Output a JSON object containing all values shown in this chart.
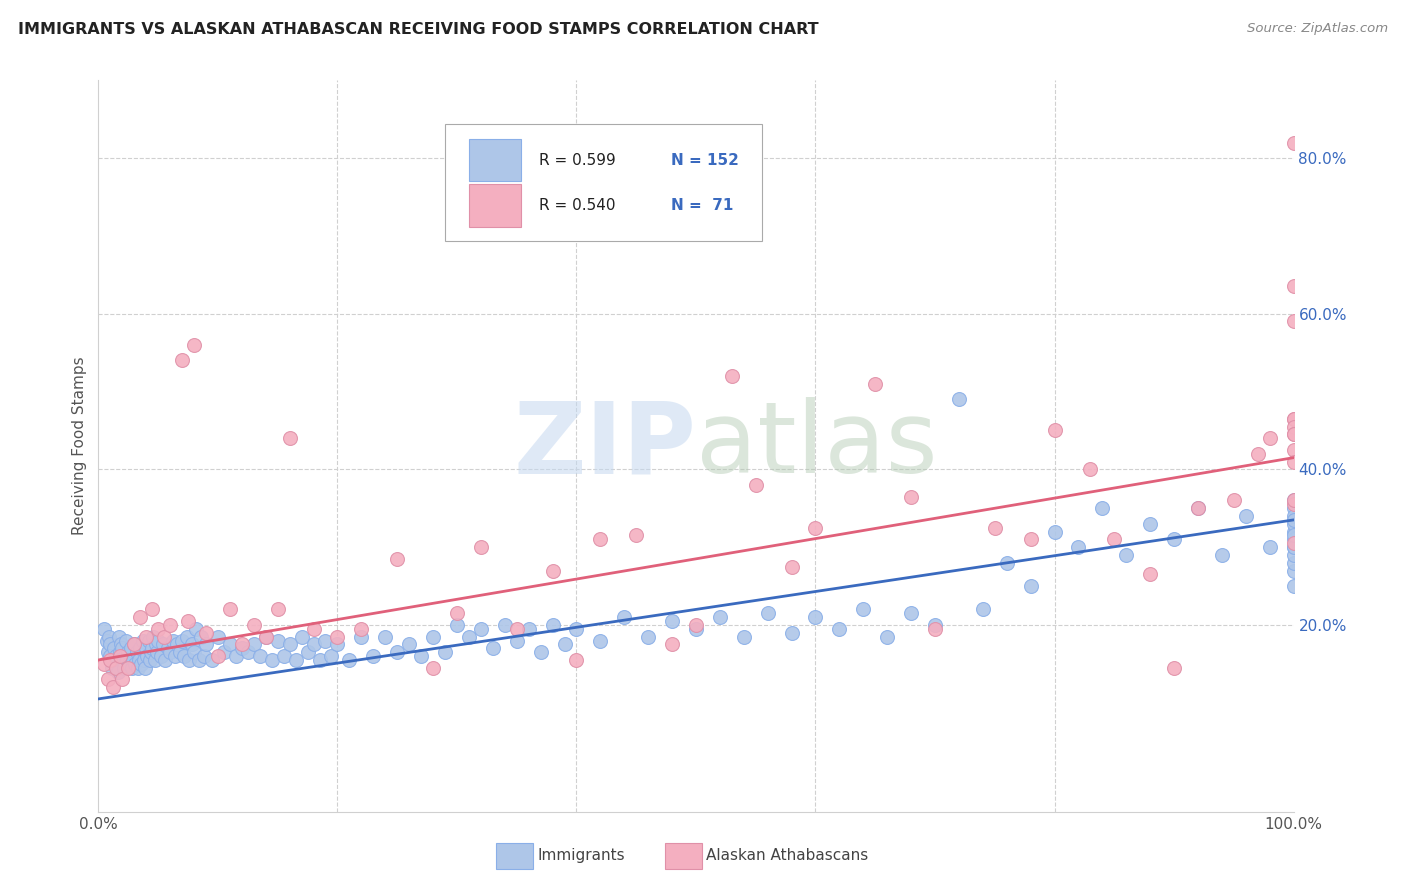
{
  "title": "IMMIGRANTS VS ALASKAN ATHABASCAN RECEIVING FOOD STAMPS CORRELATION CHART",
  "source": "Source: ZipAtlas.com",
  "ylabel": "Receiving Food Stamps",
  "watermark_zip": "ZIP",
  "watermark_atlas": "atlas",
  "legend_blue_R": "0.599",
  "legend_blue_N": "152",
  "legend_pink_R": "0.540",
  "legend_pink_N": " 71",
  "blue_color": "#aec6e8",
  "pink_color": "#f4afc0",
  "blue_line_color": "#3a6abf",
  "pink_line_color": "#e0607a",
  "background_color": "#ffffff",
  "grid_color": "#d0d0d0",
  "xlim": [
    0.0,
    1.0
  ],
  "ylim": [
    -0.04,
    0.9
  ],
  "xticks": [
    0.0,
    0.2,
    0.4,
    0.6,
    0.8,
    1.0
  ],
  "xticklabels": [
    "0.0%",
    "",
    "",
    "",
    "",
    "100.0%"
  ],
  "yticks": [
    0.2,
    0.4,
    0.6,
    0.8
  ],
  "yticklabels": [
    "20.0%",
    "40.0%",
    "60.0%",
    "80.0%"
  ],
  "blue_line_y0": 0.105,
  "blue_line_y1": 0.335,
  "pink_line_y0": 0.155,
  "pink_line_y1": 0.415,
  "blue_scatter_x": [
    0.005,
    0.007,
    0.008,
    0.009,
    0.01,
    0.01,
    0.011,
    0.012,
    0.013,
    0.014,
    0.015,
    0.016,
    0.017,
    0.018,
    0.019,
    0.02,
    0.02,
    0.021,
    0.022,
    0.023,
    0.024,
    0.025,
    0.026,
    0.027,
    0.028,
    0.029,
    0.03,
    0.031,
    0.032,
    0.033,
    0.034,
    0.035,
    0.036,
    0.037,
    0.038,
    0.039,
    0.04,
    0.041,
    0.042,
    0.043,
    0.044,
    0.045,
    0.046,
    0.047,
    0.048,
    0.049,
    0.05,
    0.052,
    0.054,
    0.056,
    0.058,
    0.06,
    0.062,
    0.064,
    0.066,
    0.068,
    0.07,
    0.072,
    0.074,
    0.076,
    0.078,
    0.08,
    0.082,
    0.084,
    0.086,
    0.088,
    0.09,
    0.095,
    0.1,
    0.105,
    0.11,
    0.115,
    0.12,
    0.125,
    0.13,
    0.135,
    0.14,
    0.145,
    0.15,
    0.155,
    0.16,
    0.165,
    0.17,
    0.175,
    0.18,
    0.185,
    0.19,
    0.195,
    0.2,
    0.21,
    0.22,
    0.23,
    0.24,
    0.25,
    0.26,
    0.27,
    0.28,
    0.29,
    0.3,
    0.31,
    0.32,
    0.33,
    0.34,
    0.35,
    0.36,
    0.37,
    0.38,
    0.39,
    0.4,
    0.42,
    0.44,
    0.46,
    0.48,
    0.5,
    0.52,
    0.54,
    0.56,
    0.58,
    0.6,
    0.62,
    0.64,
    0.66,
    0.68,
    0.7,
    0.72,
    0.74,
    0.76,
    0.78,
    0.8,
    0.82,
    0.84,
    0.86,
    0.88,
    0.9,
    0.92,
    0.94,
    0.96,
    0.98,
    1.0,
    1.0,
    1.0,
    1.0,
    1.0,
    1.0,
    1.0,
    1.0,
    1.0,
    1.0,
    1.0,
    1.0,
    1.0,
    1.0
  ],
  "blue_scatter_y": [
    0.195,
    0.18,
    0.165,
    0.185,
    0.175,
    0.16,
    0.145,
    0.155,
    0.17,
    0.15,
    0.16,
    0.14,
    0.185,
    0.165,
    0.175,
    0.155,
    0.17,
    0.145,
    0.16,
    0.18,
    0.155,
    0.165,
    0.15,
    0.17,
    0.145,
    0.155,
    0.175,
    0.15,
    0.165,
    0.145,
    0.155,
    0.17,
    0.15,
    0.18,
    0.155,
    0.145,
    0.17,
    0.16,
    0.18,
    0.155,
    0.165,
    0.17,
    0.185,
    0.155,
    0.175,
    0.165,
    0.18,
    0.16,
    0.175,
    0.155,
    0.17,
    0.165,
    0.18,
    0.16,
    0.175,
    0.165,
    0.18,
    0.16,
    0.185,
    0.155,
    0.175,
    0.165,
    0.195,
    0.155,
    0.185,
    0.16,
    0.175,
    0.155,
    0.185,
    0.165,
    0.175,
    0.16,
    0.17,
    0.165,
    0.175,
    0.16,
    0.185,
    0.155,
    0.18,
    0.16,
    0.175,
    0.155,
    0.185,
    0.165,
    0.175,
    0.155,
    0.18,
    0.16,
    0.175,
    0.155,
    0.185,
    0.16,
    0.185,
    0.165,
    0.175,
    0.16,
    0.185,
    0.165,
    0.2,
    0.185,
    0.195,
    0.17,
    0.2,
    0.18,
    0.195,
    0.165,
    0.2,
    0.175,
    0.195,
    0.18,
    0.21,
    0.185,
    0.205,
    0.195,
    0.21,
    0.185,
    0.215,
    0.19,
    0.21,
    0.195,
    0.22,
    0.185,
    0.215,
    0.2,
    0.49,
    0.22,
    0.28,
    0.25,
    0.32,
    0.3,
    0.35,
    0.29,
    0.33,
    0.31,
    0.35,
    0.29,
    0.34,
    0.3,
    0.32,
    0.27,
    0.35,
    0.3,
    0.33,
    0.28,
    0.29,
    0.31,
    0.34,
    0.25,
    0.36,
    0.3,
    0.315,
    0.335
  ],
  "pink_scatter_x": [
    0.005,
    0.008,
    0.01,
    0.012,
    0.015,
    0.018,
    0.02,
    0.025,
    0.03,
    0.035,
    0.04,
    0.045,
    0.05,
    0.055,
    0.06,
    0.07,
    0.075,
    0.08,
    0.09,
    0.1,
    0.11,
    0.12,
    0.13,
    0.14,
    0.15,
    0.16,
    0.18,
    0.2,
    0.22,
    0.25,
    0.28,
    0.3,
    0.32,
    0.35,
    0.38,
    0.4,
    0.42,
    0.45,
    0.48,
    0.5,
    0.53,
    0.55,
    0.58,
    0.6,
    0.65,
    0.68,
    0.7,
    0.75,
    0.78,
    0.8,
    0.83,
    0.85,
    0.88,
    0.9,
    0.92,
    0.95,
    0.97,
    0.98,
    1.0,
    1.0,
    1.0,
    1.0,
    1.0,
    1.0,
    1.0,
    1.0,
    1.0,
    1.0,
    1.0,
    1.0,
    1.0
  ],
  "pink_scatter_y": [
    0.15,
    0.13,
    0.155,
    0.12,
    0.145,
    0.16,
    0.13,
    0.145,
    0.175,
    0.21,
    0.185,
    0.22,
    0.195,
    0.185,
    0.2,
    0.54,
    0.205,
    0.56,
    0.19,
    0.16,
    0.22,
    0.175,
    0.2,
    0.185,
    0.22,
    0.44,
    0.195,
    0.185,
    0.195,
    0.285,
    0.145,
    0.215,
    0.3,
    0.195,
    0.27,
    0.155,
    0.31,
    0.315,
    0.175,
    0.2,
    0.52,
    0.38,
    0.275,
    0.325,
    0.51,
    0.365,
    0.195,
    0.325,
    0.31,
    0.45,
    0.4,
    0.31,
    0.265,
    0.145,
    0.35,
    0.36,
    0.42,
    0.44,
    0.305,
    0.465,
    0.465,
    0.425,
    0.41,
    0.455,
    0.445,
    0.445,
    0.635,
    0.59,
    0.355,
    0.82,
    0.36
  ]
}
